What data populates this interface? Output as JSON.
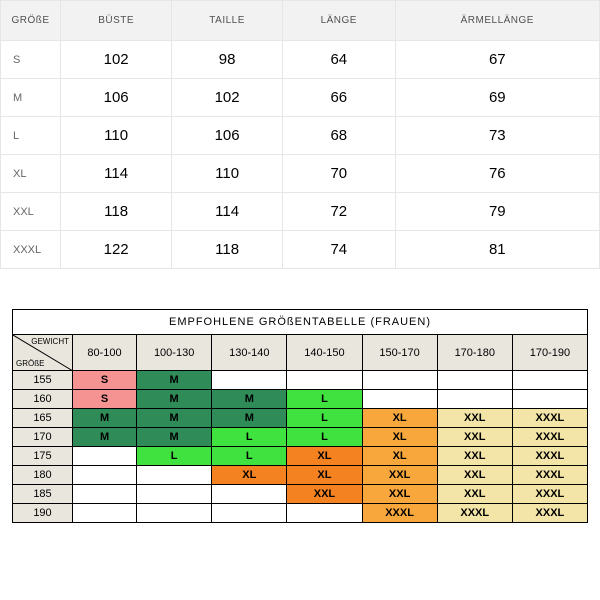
{
  "top": {
    "headers": [
      "GRÖßE",
      "BÜSTE",
      "TAILLE",
      "LÄNGE",
      "ÄRMELLÄNGE"
    ],
    "rows": [
      {
        "size": "S",
        "bust": "102",
        "waist": "98",
        "length": "64",
        "sleeve": "67"
      },
      {
        "size": "M",
        "bust": "106",
        "waist": "102",
        "length": "66",
        "sleeve": "69"
      },
      {
        "size": "L",
        "bust": "110",
        "waist": "106",
        "length": "68",
        "sleeve": "73"
      },
      {
        "size": "XL",
        "bust": "114",
        "waist": "110",
        "length": "70",
        "sleeve": "76"
      },
      {
        "size": "XXL",
        "bust": "118",
        "waist": "114",
        "length": "72",
        "sleeve": "79"
      },
      {
        "size": "XXXL",
        "bust": "122",
        "waist": "118",
        "length": "74",
        "sleeve": "81"
      }
    ]
  },
  "bottom": {
    "title": "EMPFOHLENE GRÖßENTABELLE (FRAUEN)",
    "corner_weight_label": "GEWICHT",
    "corner_height_label": "GRÖßE",
    "weights": [
      "80-100",
      "100-130",
      "130-140",
      "140-150",
      "150-170",
      "170-180",
      "170-190"
    ],
    "heights": [
      "155",
      "160",
      "165",
      "170",
      "175",
      "180",
      "185",
      "190"
    ],
    "colors": {
      "pink": "#f59393",
      "dgreen": "#2f8b57",
      "lgreen": "#3fe23f",
      "orangeD": "#f58220",
      "orangeM": "#f7a73b",
      "cream": "#f3e4a7",
      "blank": "#ffffff",
      "headerBg": "#e9e6de"
    },
    "cells": [
      [
        {
          "t": "S",
          "c": "pink"
        },
        {
          "t": "M",
          "c": "dgreen"
        },
        {
          "t": "",
          "c": "blank"
        },
        {
          "t": "",
          "c": "blank"
        },
        {
          "t": "",
          "c": "blank"
        },
        {
          "t": "",
          "c": "blank"
        },
        {
          "t": "",
          "c": "blank"
        }
      ],
      [
        {
          "t": "S",
          "c": "pink"
        },
        {
          "t": "M",
          "c": "dgreen"
        },
        {
          "t": "M",
          "c": "dgreen"
        },
        {
          "t": "L",
          "c": "lgreen"
        },
        {
          "t": "",
          "c": "blank"
        },
        {
          "t": "",
          "c": "blank"
        },
        {
          "t": "",
          "c": "blank"
        }
      ],
      [
        {
          "t": "M",
          "c": "dgreen"
        },
        {
          "t": "M",
          "c": "dgreen"
        },
        {
          "t": "M",
          "c": "dgreen"
        },
        {
          "t": "L",
          "c": "lgreen"
        },
        {
          "t": "XL",
          "c": "orangeM"
        },
        {
          "t": "XXL",
          "c": "cream"
        },
        {
          "t": "XXXL",
          "c": "cream"
        }
      ],
      [
        {
          "t": "M",
          "c": "dgreen"
        },
        {
          "t": "M",
          "c": "dgreen"
        },
        {
          "t": "L",
          "c": "lgreen"
        },
        {
          "t": "L",
          "c": "lgreen"
        },
        {
          "t": "XL",
          "c": "orangeM"
        },
        {
          "t": "XXL",
          "c": "cream"
        },
        {
          "t": "XXXL",
          "c": "cream"
        }
      ],
      [
        {
          "t": "",
          "c": "blank"
        },
        {
          "t": "L",
          "c": "lgreen"
        },
        {
          "t": "L",
          "c": "lgreen"
        },
        {
          "t": "XL",
          "c": "orangeD"
        },
        {
          "t": "XL",
          "c": "orangeM"
        },
        {
          "t": "XXL",
          "c": "cream"
        },
        {
          "t": "XXXL",
          "c": "cream"
        }
      ],
      [
        {
          "t": "",
          "c": "blank"
        },
        {
          "t": "",
          "c": "blank"
        },
        {
          "t": "XL",
          "c": "orangeD"
        },
        {
          "t": "XL",
          "c": "orangeD"
        },
        {
          "t": "XXL",
          "c": "orangeM"
        },
        {
          "t": "XXL",
          "c": "cream"
        },
        {
          "t": "XXXL",
          "c": "cream"
        }
      ],
      [
        {
          "t": "",
          "c": "blank"
        },
        {
          "t": "",
          "c": "blank"
        },
        {
          "t": "",
          "c": "blank"
        },
        {
          "t": "XXL",
          "c": "orangeD"
        },
        {
          "t": "XXL",
          "c": "orangeM"
        },
        {
          "t": "XXL",
          "c": "cream"
        },
        {
          "t": "XXXL",
          "c": "cream"
        }
      ],
      [
        {
          "t": "",
          "c": "blank"
        },
        {
          "t": "",
          "c": "blank"
        },
        {
          "t": "",
          "c": "blank"
        },
        {
          "t": "",
          "c": "blank"
        },
        {
          "t": "XXXL",
          "c": "orangeM"
        },
        {
          "t": "XXXL",
          "c": "cream"
        },
        {
          "t": "XXXL",
          "c": "cream"
        }
      ]
    ]
  }
}
